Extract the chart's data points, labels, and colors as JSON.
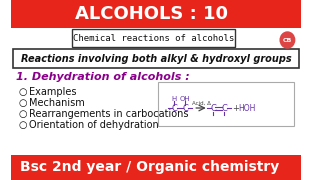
{
  "title": "ALCOHOLS : 10",
  "title_bg": "#e8251a",
  "title_color": "#ffffff",
  "subtitle": "Chemical reactions of alcohols",
  "subtitle_bg": "#ffffff",
  "subtitle_border": "#333333",
  "reaction_box": "Reactions involving both alkyl & hydroxyl groups",
  "section_title": "1. Dehydration of alcohols :",
  "section_color": "#8b008b",
  "bullets": [
    "Examples",
    "Mechanism",
    "Rearrangements in carbocations",
    "Orientation of dehydration"
  ],
  "bullet_color": "#111111",
  "footer": "Bsc 2nd year / Organic chemistry",
  "footer_bg": "#e8251a",
  "footer_color": "#ffffff",
  "bg_color": "#ffffff",
  "chem_color": "#6633aa",
  "arrow_color": "#444444",
  "reaction_border": "#aaaaaa"
}
